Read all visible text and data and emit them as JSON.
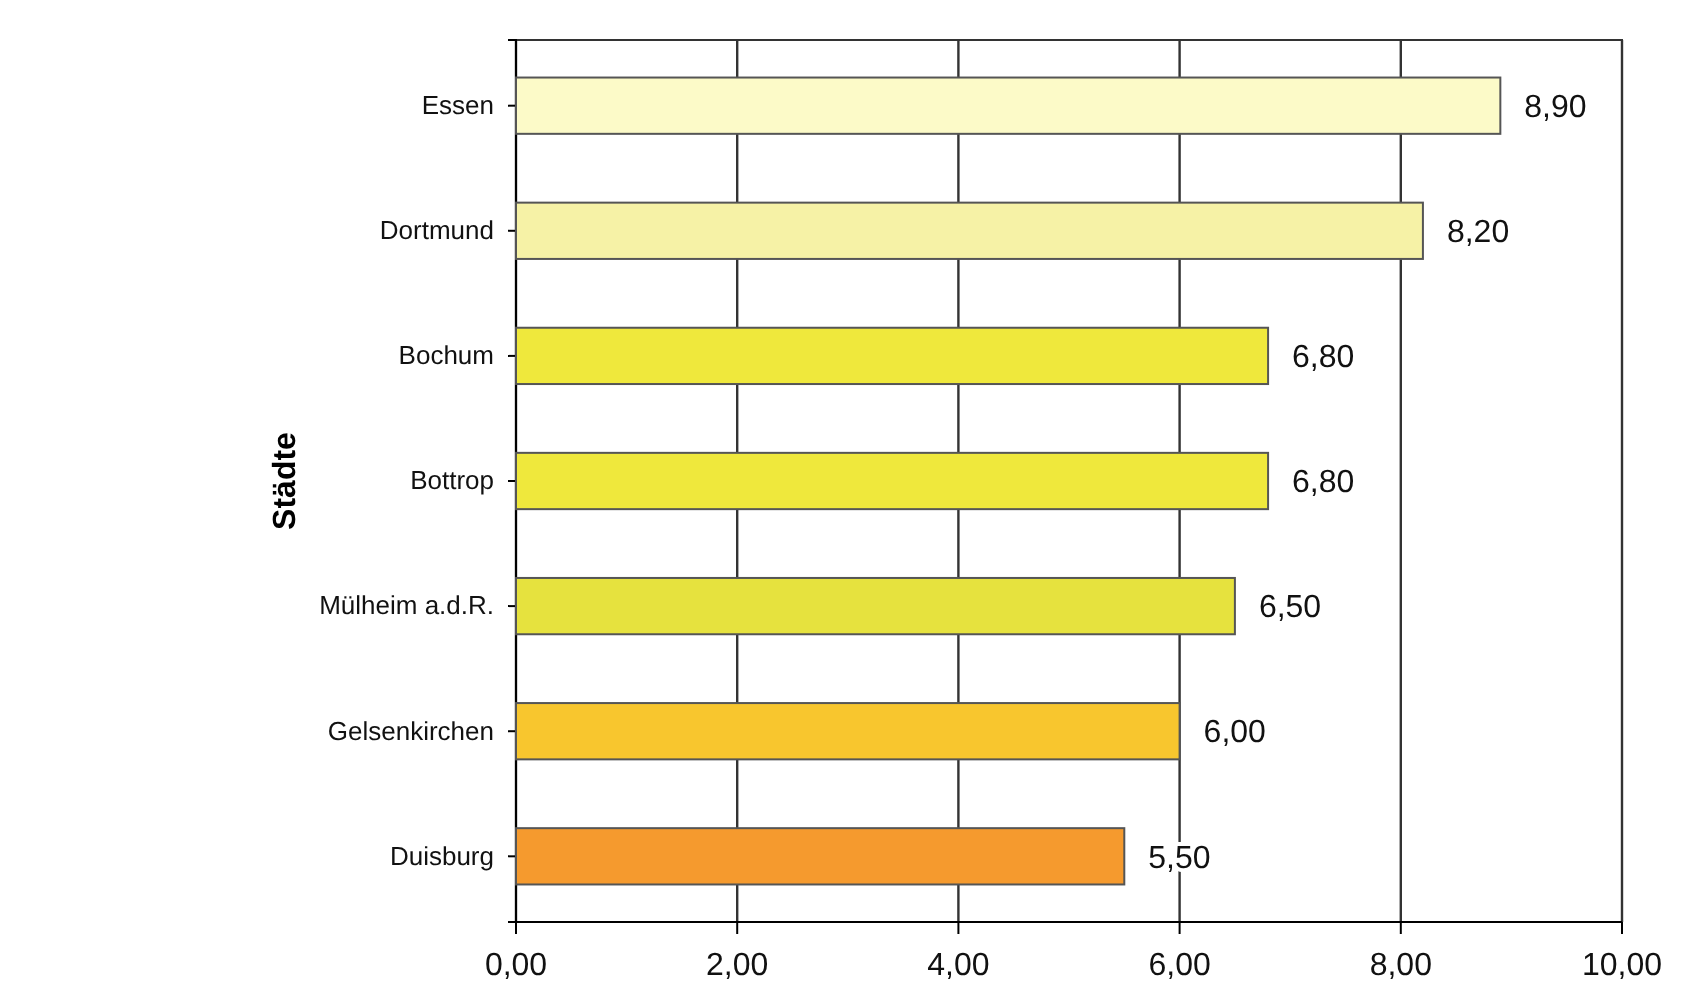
{
  "chart_data": {
    "type": "bar",
    "orientation": "horizontal",
    "ylabel": "Städte",
    "categories": [
      "Essen",
      "Dortmund",
      "Bochum",
      "Bottrop",
      "Mülheim a.d.R.",
      "Gelsenkirchen",
      "Duisburg"
    ],
    "values": [
      8.9,
      8.2,
      6.8,
      6.8,
      6.5,
      6.0,
      5.5
    ],
    "value_labels": [
      "8,90",
      "8,20",
      "6,80",
      "6,80",
      "6,50",
      "6,00",
      "5,50"
    ],
    "colors": [
      "#fcfac8",
      "#f6f2a6",
      "#efe83c",
      "#efe83c",
      "#e6e23e",
      "#f8c62e",
      "#f59a2e"
    ],
    "xlim": [
      0,
      10
    ],
    "xticks": [
      {
        "value": 0,
        "label": "0,00"
      },
      {
        "value": 2,
        "label": "2,00"
      },
      {
        "value": 4,
        "label": "4,00"
      },
      {
        "value": 6,
        "label": "6,00"
      },
      {
        "value": 8,
        "label": "8,00"
      },
      {
        "value": 10,
        "label": "10,00"
      }
    ],
    "grid": "x"
  }
}
